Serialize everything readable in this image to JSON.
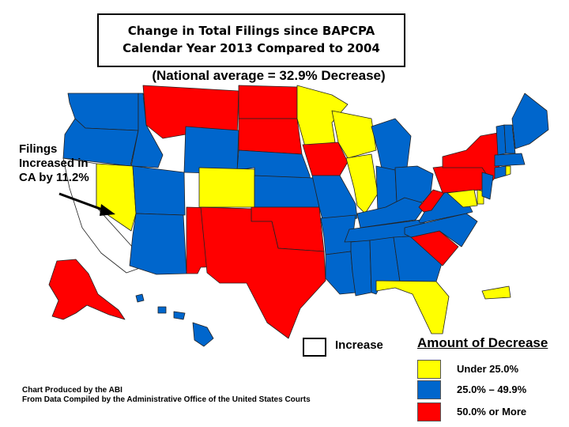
{
  "title": {
    "line1": "Change in Total Filings since BAPCPA",
    "line2": "Calendar Year 2013 Compared to 2004"
  },
  "subtitle": "(National average = 32.9% Decrease)",
  "annotation": "Filings Increased in CA by 11.2%",
  "increase_label": "Increase",
  "legend": {
    "title": "Amount of Decrease",
    "items": [
      {
        "label": "Under 25.0%",
        "color": "#ffff00"
      },
      {
        "label": "25.0% – 49.9%",
        "color": "#0066cc"
      },
      {
        "label": "50.0% or More",
        "color": "#ff0000"
      }
    ]
  },
  "credits": {
    "line1": "Chart Produced by the ABI",
    "line2": "From Data Compiled by the Administrative Office of the United States Courts"
  },
  "colors": {
    "under_25": "#ffff00",
    "from_25_to_49_9": "#0066cc",
    "over_50": "#ff0000",
    "increase": "#ffffff"
  },
  "regions": [
    {
      "name": "CA",
      "category": "increase"
    },
    {
      "name": "WA",
      "category": "from_25_to_49_9"
    },
    {
      "name": "OR",
      "category": "from_25_to_49_9"
    },
    {
      "name": "ID",
      "category": "from_25_to_49_9"
    },
    {
      "name": "MT",
      "category": "over_50"
    },
    {
      "name": "ND",
      "category": "over_50"
    },
    {
      "name": "SD",
      "category": "over_50"
    },
    {
      "name": "WY",
      "category": "from_25_to_49_9"
    },
    {
      "name": "NE",
      "category": "from_25_to_49_9"
    },
    {
      "name": "NV",
      "category": "under_25"
    },
    {
      "name": "UT",
      "category": "from_25_to_49_9"
    },
    {
      "name": "CO",
      "category": "under_25"
    },
    {
      "name": "KS",
      "category": "from_25_to_49_9"
    },
    {
      "name": "AZ",
      "category": "from_25_to_49_9"
    },
    {
      "name": "NM",
      "category": "over_50"
    },
    {
      "name": "OK",
      "category": "over_50"
    },
    {
      "name": "TX",
      "category": "over_50"
    },
    {
      "name": "MN",
      "category": "under_25"
    },
    {
      "name": "IA",
      "category": "over_50"
    },
    {
      "name": "MO",
      "category": "from_25_to_49_9"
    },
    {
      "name": "AR",
      "category": "from_25_to_49_9"
    },
    {
      "name": "LA",
      "category": "from_25_to_49_9"
    },
    {
      "name": "WI",
      "category": "under_25"
    },
    {
      "name": "IL",
      "category": "under_25"
    },
    {
      "name": "MI",
      "category": "from_25_to_49_9"
    },
    {
      "name": "IN",
      "category": "from_25_to_49_9"
    },
    {
      "name": "OH",
      "category": "from_25_to_49_9"
    },
    {
      "name": "KY",
      "category": "from_25_to_49_9"
    },
    {
      "name": "TN",
      "category": "from_25_to_49_9"
    },
    {
      "name": "MS",
      "category": "from_25_to_49_9"
    },
    {
      "name": "AL",
      "category": "from_25_to_49_9"
    },
    {
      "name": "GA",
      "category": "from_25_to_49_9"
    },
    {
      "name": "FL",
      "category": "under_25"
    },
    {
      "name": "SC",
      "category": "over_50"
    },
    {
      "name": "NC",
      "category": "from_25_to_49_9"
    },
    {
      "name": "VA",
      "category": "from_25_to_49_9"
    },
    {
      "name": "WV",
      "category": "over_50"
    },
    {
      "name": "PA",
      "category": "over_50"
    },
    {
      "name": "NY",
      "category": "over_50"
    },
    {
      "name": "MD",
      "category": "under_25"
    },
    {
      "name": "DE",
      "category": "under_25"
    },
    {
      "name": "NJ",
      "category": "from_25_to_49_9"
    },
    {
      "name": "CT",
      "category": "from_25_to_49_9"
    },
    {
      "name": "RI",
      "category": "under_25"
    },
    {
      "name": "MA",
      "category": "from_25_to_49_9"
    },
    {
      "name": "VT",
      "category": "from_25_to_49_9"
    },
    {
      "name": "NH",
      "category": "from_25_to_49_9"
    },
    {
      "name": "ME",
      "category": "from_25_to_49_9"
    },
    {
      "name": "AK",
      "category": "over_50"
    },
    {
      "name": "HI",
      "category": "from_25_to_49_9"
    },
    {
      "name": "PR",
      "category": "under_25"
    }
  ]
}
